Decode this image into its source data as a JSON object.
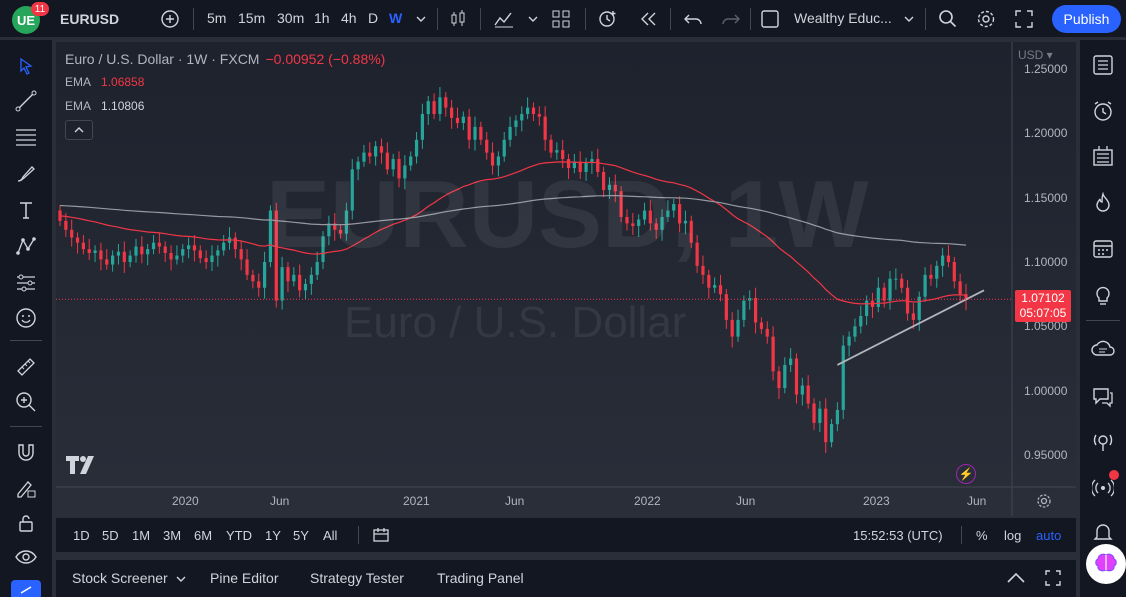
{
  "top": {
    "logo_text": "UE",
    "notif_count": "11",
    "symbol": "EURUSD",
    "intervals": [
      "5m",
      "15m",
      "30m",
      "1h",
      "4h",
      "D",
      "W"
    ],
    "active_interval": "W",
    "layout_name": "Wealthy Educ...",
    "publish_label": "Publish"
  },
  "chart": {
    "title": "Euro / U.S. Dollar · 1W · FXCM",
    "change": "−0.00952 (−0.88%)",
    "ema1_label": "EMA",
    "ema1_value": "1.06858",
    "ema2_label": "EMA",
    "ema2_value": "1.10806",
    "watermark_symbol": "EURUSD, 1W",
    "watermark_desc": "Euro / U.S. Dollar",
    "currency": "USD",
    "price_labels": [
      "1.25000",
      "1.20000",
      "1.15000",
      "1.10000",
      "1.05000",
      "1.00000",
      "0.95000"
    ],
    "last_price": "1.07102",
    "countdown": "05:07:05",
    "time_labels": [
      "2020",
      "Jun",
      "2021",
      "Jun",
      "2022",
      "Jun",
      "2023",
      "Jun"
    ],
    "colors": {
      "up": "#26a69a",
      "down": "#f23645",
      "ema_fast": "#f23645",
      "ema_slow": "#9598a1",
      "trendline": "#b2b5be"
    }
  },
  "chart_data": {
    "type": "candlestick",
    "symbol": "EURUSD",
    "timeframe": "1W",
    "ylim": [
      0.93,
      1.26
    ],
    "y_ticks": [
      0.95,
      1.0,
      1.05,
      1.1,
      1.15,
      1.2,
      1.25
    ],
    "x_ticks": [
      "2020",
      "Jun",
      "2021",
      "Jun",
      "2022",
      "Jun",
      "2023",
      "Jun"
    ],
    "last_price": 1.07102,
    "closes": [
      1.132,
      1.125,
      1.119,
      1.115,
      1.11,
      1.107,
      1.109,
      1.102,
      1.098,
      1.105,
      1.108,
      1.1,
      1.105,
      1.112,
      1.106,
      1.11,
      1.115,
      1.112,
      1.107,
      1.102,
      1.105,
      1.11,
      1.113,
      1.109,
      1.103,
      1.1,
      1.105,
      1.109,
      1.115,
      1.119,
      1.11,
      1.102,
      1.09,
      1.085,
      1.08,
      1.1,
      1.14,
      1.07,
      1.096,
      1.085,
      1.09,
      1.078,
      1.083,
      1.09,
      1.1,
      1.12,
      1.13,
      1.125,
      1.122,
      1.14,
      1.172,
      1.178,
      1.185,
      1.182,
      1.19,
      1.185,
      1.172,
      1.18,
      1.165,
      1.175,
      1.182,
      1.195,
      1.215,
      1.225,
      1.215,
      1.228,
      1.22,
      1.212,
      1.208,
      1.213,
      1.195,
      1.205,
      1.195,
      1.185,
      1.175,
      1.182,
      1.195,
      1.205,
      1.21,
      1.215,
      1.22,
      1.215,
      1.213,
      1.195,
      1.185,
      1.187,
      1.18,
      1.173,
      1.178,
      1.17,
      1.177,
      1.18,
      1.17,
      1.156,
      1.16,
      1.155,
      1.135,
      1.13,
      1.128,
      1.133,
      1.14,
      1.13,
      1.125,
      1.135,
      1.14,
      1.145,
      1.13,
      1.132,
      1.115,
      1.097,
      1.09,
      1.08,
      1.082,
      1.075,
      1.055,
      1.042,
      1.055,
      1.07,
      1.072,
      1.053,
      1.048,
      1.042,
      1.015,
      1.002,
      1.02,
      1.025,
      0.997,
      1.004,
      0.99,
      0.975,
      0.986,
      0.96,
      0.974,
      0.985,
      1.035,
      1.042,
      1.05,
      1.058,
      1.07,
      1.065,
      1.08,
      1.07,
      1.087,
      1.087,
      1.08,
      1.06,
      1.055,
      1.073,
      1.09,
      1.087,
      1.097,
      1.105,
      1.1,
      1.085,
      1.075,
      1.071
    ],
    "series": [
      {
        "name": "EMA",
        "value": 1.06858
      },
      {
        "name": "EMA",
        "value": 1.10806
      }
    ]
  },
  "rangebar": {
    "ranges": [
      "1D",
      "5D",
      "1M",
      "3M",
      "6M",
      "YTD",
      "1Y",
      "5Y",
      "All"
    ],
    "clock": "15:52:53 (UTC)",
    "percent": "%",
    "log": "log",
    "auto": "auto"
  },
  "bottom": {
    "tabs": [
      "Stock Screener",
      "Pine Editor",
      "Strategy Tester",
      "Trading Panel"
    ]
  }
}
